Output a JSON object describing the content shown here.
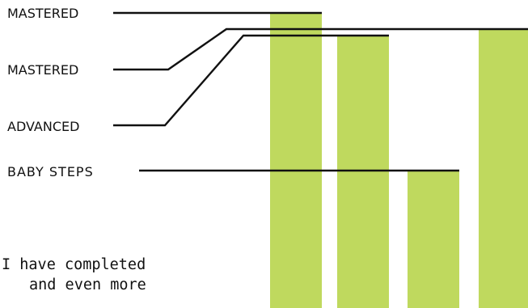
{
  "chart_data": {
    "type": "bar",
    "bar_color": "#bfd95e",
    "values": [
      4,
      3.4,
      1,
      4
    ],
    "level_labels": [
      {
        "text": "MASTERED",
        "level": 4
      },
      {
        "text": "MASTERED",
        "level": 4.0
      },
      {
        "text": "ADVANCED",
        "level": 3.4
      },
      {
        "text": "BABY STEPS",
        "level": 1
      }
    ],
    "annotation_lines": [
      "I have completed",
      "and even more"
    ]
  }
}
